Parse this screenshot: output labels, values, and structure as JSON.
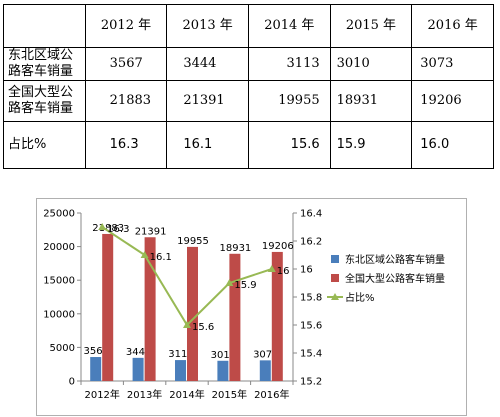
{
  "table": {
    "header": [
      "",
      "2012 年",
      "2013 年",
      "2014 年",
      "2015 年",
      "2016 年"
    ],
    "rows": [
      {
        "label": "东北区域公路客车销量",
        "values": [
          "3567",
          "3444",
          "3113",
          "3010",
          "3073"
        ]
      },
      {
        "label": "全国大型公路客车销量",
        "values": [
          "21883",
          "21391",
          "19955",
          "18931",
          "19206"
        ]
      },
      {
        "label": "占比%",
        "values": [
          "16.3",
          "16.1",
          "15.6",
          "15.9",
          "16.0"
        ]
      }
    ]
  },
  "chart_data": {
    "type": "bar",
    "categories": [
      "2012年",
      "2013年",
      "2014年",
      "2015年",
      "2016年"
    ],
    "series": [
      {
        "name": "东北区域公路客车销量",
        "type": "bar",
        "axis": "left",
        "color": "#4a7ebb",
        "values": [
          3567,
          3444,
          3113,
          3010,
          3073
        ],
        "labels": [
          "3567",
          "3444",
          "3113",
          "3010",
          "3073"
        ]
      },
      {
        "name": "全国大型公路客车销量",
        "type": "bar",
        "axis": "left",
        "color": "#be4b48",
        "values": [
          21883,
          21391,
          19955,
          18931,
          19206
        ],
        "labels": [
          "21883",
          "21391",
          "19955",
          "18931",
          "19206"
        ]
      },
      {
        "name": "占比%",
        "type": "line",
        "axis": "right",
        "color": "#98b954",
        "values": [
          16.3,
          16.1,
          15.6,
          15.9,
          16.0
        ],
        "labels": [
          "16.3",
          "16.1",
          "15.6",
          "15.9",
          "16"
        ]
      }
    ],
    "ylim": [
      0,
      25000
    ],
    "yticks": [
      "0",
      "5000",
      "10000",
      "15000",
      "20000",
      "25000"
    ],
    "y2lim": [
      15.2,
      16.4
    ],
    "y2ticks": [
      "15.2",
      "15.4",
      "15.6",
      "15.8",
      "16",
      "16.2",
      "16.4"
    ],
    "legend_position": "right",
    "grid": false
  }
}
